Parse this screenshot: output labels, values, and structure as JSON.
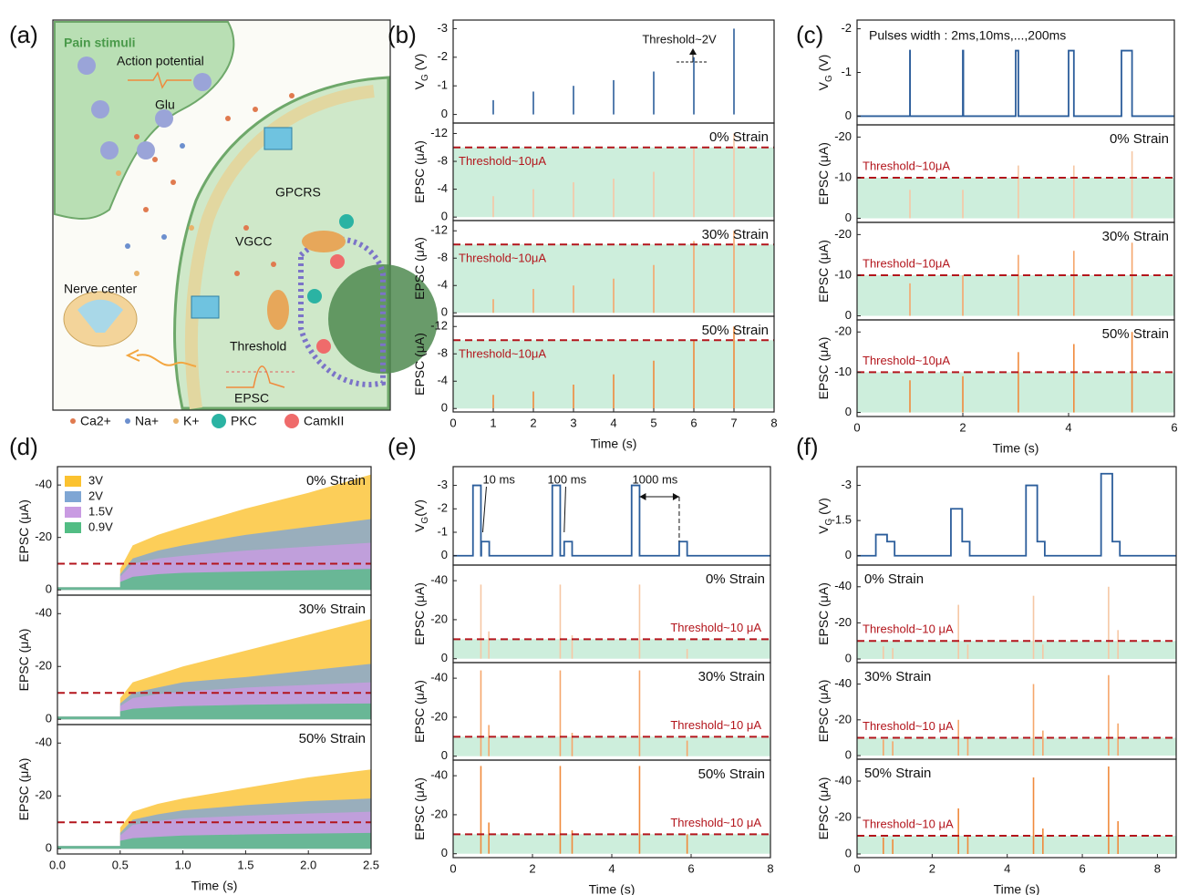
{
  "panels": [
    "(a)",
    "(b)",
    "(c)",
    "(d)",
    "(e)",
    "(f)"
  ],
  "diagram": {
    "title": "Pain stimuli",
    "action_potential": "Action potential",
    "glu": "Glu",
    "gpcrs": "GPCRS",
    "vgcc": "VGCC",
    "nerve_center": "Nerve center",
    "threshold": "Threshold",
    "epsc": "EPSC",
    "legend": [
      "Ca2+",
      "Na+",
      "K+",
      "PKC",
      "CamkII"
    ]
  },
  "chart_data": [
    {
      "type": "stem",
      "ylabel": [
        "V",
        "G",
        " (V)"
      ],
      "xlim": [
        0,
        8
      ],
      "ylim": [
        0.3,
        -3.3
      ],
      "yticks": [
        -3,
        -2,
        -1,
        0
      ],
      "color": "#2b5d9b",
      "x": [
        1,
        2,
        3,
        4,
        5,
        6,
        7
      ],
      "values": [
        -0.5,
        -0.8,
        -1,
        -1.2,
        -1.5,
        -2,
        -3
      ],
      "annotations": [
        "Threshold~2V"
      ]
    },
    {
      "type": "stem",
      "ylabel": [
        "EPSC (μA)"
      ],
      "label": "0% Strain",
      "xlim": [
        0,
        8
      ],
      "ylim": [
        0.5,
        -13.5
      ],
      "yticks": [
        -12,
        -8,
        -4,
        0
      ],
      "color": "#f6c7a4",
      "threshold": -10,
      "threshold_label": "Threshold~10μA",
      "threshold_fill": "#cdeedc",
      "x": [
        1,
        2,
        3,
        4,
        5,
        6,
        7
      ],
      "values": [
        -3,
        -4,
        -5,
        -5.5,
        -6.5,
        -10,
        -12
      ]
    },
    {
      "type": "stem",
      "ylabel": [
        "EPSC (μA)"
      ],
      "label": "30% Strain",
      "xlim": [
        0,
        8
      ],
      "ylim": [
        0.5,
        -13.5
      ],
      "yticks": [
        -12,
        -8,
        -4,
        0
      ],
      "color": "#f5a66b",
      "threshold": -10,
      "threshold_label": "Threshold~10μA",
      "threshold_fill": "#cdeedc",
      "x": [
        1,
        2,
        3,
        4,
        5,
        6,
        7
      ],
      "values": [
        -2,
        -3.5,
        -4,
        -5,
        -7,
        -10.5,
        -12
      ]
    },
    {
      "type": "stem",
      "ylabel": [
        "EPSC (μA)"
      ],
      "label": "50% Strain",
      "xlim": [
        0,
        8
      ],
      "ylim": [
        0.5,
        -13.5
      ],
      "yticks": [
        -12,
        -8,
        -4,
        0
      ],
      "color": "#f08a3c",
      "threshold": -10,
      "threshold_label": "Threshold~10μA",
      "threshold_fill": "#cdeedc",
      "x": [
        1,
        2,
        3,
        4,
        5,
        6,
        7
      ],
      "values": [
        -2,
        -2.5,
        -3.5,
        -5,
        -7,
        -10,
        -12
      ],
      "xticks": [
        0,
        1,
        2,
        3,
        4,
        5,
        6,
        7,
        8
      ],
      "xlabel": "Time (s)"
    },
    {
      "type": "line",
      "ylabel": [
        "V",
        "G",
        " (V)"
      ],
      "xlim": [
        0,
        6
      ],
      "ylim": [
        0.2,
        -2.2
      ],
      "yticks": [
        -2,
        -1,
        0
      ],
      "color": "#2b5d9b",
      "annotations": [
        "Pulses width : 2ms,10ms,...,200ms"
      ],
      "x": [
        0,
        1,
        1,
        1.002,
        1.002,
        2,
        2,
        2.01,
        2.01,
        3,
        3,
        3.05,
        3.05,
        4,
        4,
        4.1,
        4.1,
        5,
        5,
        5.2,
        5.2,
        6
      ],
      "values": [
        0,
        0,
        -1.5,
        -1.5,
        0,
        0,
        -1.5,
        -1.5,
        0,
        0,
        -1.5,
        -1.5,
        0,
        0,
        -1.5,
        -1.5,
        0,
        0,
        -1.5,
        -1.5,
        0,
        0
      ]
    },
    {
      "type": "stem",
      "ylabel": [
        "EPSC (μA)"
      ],
      "label": "0% Strain",
      "xlim": [
        0,
        6
      ],
      "ylim": [
        1,
        -23
      ],
      "yticks": [
        -20,
        -10,
        0
      ],
      "color": "#f6c7a4",
      "threshold": -10,
      "threshold_label": "Threshold~10μA",
      "threshold_fill": "#cdeedc",
      "x": [
        1,
        2,
        3.05,
        4.1,
        5.2
      ],
      "values": [
        -7,
        -7,
        -13,
        -13,
        -16.5
      ]
    },
    {
      "type": "stem",
      "ylabel": [
        "EPSC (μA)"
      ],
      "label": "30% Strain",
      "xlim": [
        0,
        6
      ],
      "ylim": [
        1,
        -23
      ],
      "yticks": [
        -20,
        -10,
        0
      ],
      "color": "#f5a66b",
      "threshold": -10,
      "threshold_label": "Threshold~10μA",
      "threshold_fill": "#cdeedc",
      "x": [
        1,
        2,
        3.05,
        4.1,
        5.2
      ],
      "values": [
        -8,
        -10,
        -15,
        -16,
        -18
      ]
    },
    {
      "type": "stem",
      "ylabel": [
        "EPSC (μA)"
      ],
      "label": "50% Strain",
      "xlim": [
        0,
        6
      ],
      "ylim": [
        1,
        -23
      ],
      "yticks": [
        -20,
        -10,
        0
      ],
      "color": "#f08a3c",
      "threshold": -10,
      "threshold_label": "Threshold~10μA",
      "threshold_fill": "#cdeedc",
      "x": [
        1,
        2,
        3.05,
        4.1,
        5.2
      ],
      "values": [
        -8,
        -9,
        -15,
        -17,
        -20
      ],
      "xticks": [
        0,
        2,
        4,
        6
      ],
      "xlabel": "Time (s)"
    },
    {
      "type": "area",
      "ylabel": [
        "EPSC (μA)"
      ],
      "label": "0% Strain",
      "xlim": [
        0,
        2.5
      ],
      "ylim": [
        2,
        -47
      ],
      "yticks": [
        -40,
        -20,
        0
      ],
      "threshold": -10,
      "legend": "upper left",
      "x": [
        0,
        0.5,
        0.5,
        0.6,
        0.8,
        1,
        1.5,
        2,
        2.5
      ],
      "series": [
        {
          "name": "3V",
          "color": "#fbc230",
          "values": [
            -1,
            -1,
            -8,
            -17,
            -21,
            -24,
            -31,
            -37,
            -44
          ]
        },
        {
          "name": "2V",
          "color": "#7fa6d4",
          "values": [
            -1,
            -1,
            -6,
            -12,
            -15,
            -17,
            -21,
            -24,
            -27
          ]
        },
        {
          "name": "1.5V",
          "color": "#c99be2",
          "values": [
            -1,
            -1,
            -5,
            -10,
            -12,
            -13,
            -15,
            -16.5,
            -18
          ]
        },
        {
          "name": "0.9V",
          "color": "#52bd84",
          "values": [
            -1,
            -1,
            -3,
            -5,
            -6,
            -6.5,
            -7,
            -7.5,
            -8
          ]
        }
      ]
    },
    {
      "type": "area",
      "ylabel": [
        "EPSC (μA)"
      ],
      "label": "30% Strain",
      "xlim": [
        0,
        2.5
      ],
      "ylim": [
        2,
        -47
      ],
      "yticks": [
        -40,
        -20,
        0
      ],
      "threshold": -10,
      "x": [
        0,
        0.5,
        0.5,
        0.6,
        0.8,
        1,
        1.5,
        2,
        2.5
      ],
      "series": [
        {
          "name": "3V",
          "color": "#fbc230",
          "values": [
            -1,
            -1,
            -8,
            -14,
            -17,
            -20,
            -26,
            -32,
            -38
          ]
        },
        {
          "name": "2V",
          "color": "#7fa6d4",
          "values": [
            -1,
            -1,
            -6,
            -10,
            -12,
            -14,
            -16,
            -18.5,
            -21
          ]
        },
        {
          "name": "1.5V",
          "color": "#c99be2",
          "values": [
            -1,
            -1,
            -5,
            -8,
            -9.5,
            -10.5,
            -12,
            -13,
            -14
          ]
        },
        {
          "name": "0.9V",
          "color": "#52bd84",
          "values": [
            -1,
            -1,
            -3,
            -4,
            -4.5,
            -5,
            -5.5,
            -5.8,
            -6
          ]
        }
      ]
    },
    {
      "type": "area",
      "ylabel": [
        "EPSC (μA)"
      ],
      "label": "50% Strain",
      "xlim": [
        0,
        2.5
      ],
      "ylim": [
        2,
        -47
      ],
      "yticks": [
        -40,
        -20,
        0
      ],
      "threshold": -10,
      "x": [
        0,
        0.5,
        0.5,
        0.6,
        0.8,
        1,
        1.5,
        2,
        2.5
      ],
      "series": [
        {
          "name": "3V",
          "color": "#fbc230",
          "values": [
            -1,
            -1,
            -8,
            -14,
            -17,
            -19,
            -23,
            -27,
            -30
          ]
        },
        {
          "name": "2V",
          "color": "#7fa6d4",
          "values": [
            -1,
            -1,
            -6,
            -11,
            -13,
            -14.5,
            -16.5,
            -18,
            -19
          ]
        },
        {
          "name": "1.5V",
          "color": "#c99be2",
          "values": [
            -1,
            -1,
            -5,
            -9,
            -10.5,
            -11.5,
            -12.5,
            -13.3,
            -14
          ]
        },
        {
          "name": "0.9V",
          "color": "#52bd84",
          "values": [
            -1,
            -1,
            -3,
            -4,
            -4.5,
            -5,
            -5.4,
            -5.7,
            -6
          ]
        }
      ],
      "xticks": [
        {
          "value": 0,
          "label": "0.0"
        },
        0.5,
        {
          "value": 1,
          "label": "1.0"
        },
        1.5,
        {
          "value": 2,
          "label": "2.0"
        },
        2.5
      ],
      "xlabel": "Time (s)"
    },
    {
      "type": "line",
      "ylabel": [
        "V",
        "G",
        "(V)"
      ],
      "xlim": [
        0,
        8
      ],
      "ylim": [
        0.4,
        -3.8
      ],
      "yticks": [
        -3,
        -2,
        -1,
        0
      ],
      "color": "#2b5d9b",
      "annotations": [
        "10 ms",
        "100 ms",
        "1000 ms"
      ],
      "x": [
        0,
        0.5,
        0.5,
        0.7,
        0.7,
        0.71,
        0.71,
        0.91,
        0.91,
        2.5,
        2.5,
        2.7,
        2.7,
        2.8,
        2.8,
        3.0,
        3.0,
        4.5,
        4.5,
        4.7,
        4.7,
        5.7,
        5.7,
        5.9,
        5.9,
        8
      ],
      "values": [
        0,
        0,
        -3,
        -3,
        0,
        0,
        -0.6,
        -0.6,
        0,
        0,
        -3,
        -3,
        0,
        0,
        -0.6,
        -0.6,
        0,
        0,
        -3,
        -3,
        0,
        0,
        -0.6,
        -0.6,
        0,
        0
      ]
    },
    {
      "type": "stem",
      "ylabel": [
        "EPSC (μA)"
      ],
      "label": "0% Strain",
      "xlim": [
        0,
        8
      ],
      "ylim": [
        2,
        -48
      ],
      "yticks": [
        -40,
        -20,
        0
      ],
      "color": "#f6c7a4",
      "threshold": -10,
      "threshold_label": "Threshold~10 μA",
      "threshold_fill": "#cdeedc",
      "x": [
        0.7,
        0.9,
        2.7,
        3.0,
        4.7,
        5.9
      ],
      "values": [
        -38,
        -14,
        -38,
        -12,
        -38,
        -5
      ]
    },
    {
      "type": "stem",
      "ylabel": [
        "EPSC (μA)"
      ],
      "label": "30% Strain",
      "xlim": [
        0,
        8
      ],
      "ylim": [
        2,
        -48
      ],
      "yticks": [
        -40,
        -20,
        0
      ],
      "color": "#f5a66b",
      "threshold": -10,
      "threshold_label": "Threshold~10 μA",
      "threshold_fill": "#cdeedc",
      "x": [
        0.7,
        0.9,
        2.7,
        3.0,
        4.7,
        5.9
      ],
      "values": [
        -44,
        -16,
        -44,
        -12,
        -44,
        -8
      ]
    },
    {
      "type": "stem",
      "ylabel": [
        "EPSC (μA)"
      ],
      "label": "50% Strain",
      "xlim": [
        0,
        8
      ],
      "ylim": [
        2,
        -48
      ],
      "yticks": [
        -40,
        -20,
        0
      ],
      "color": "#f08a3c",
      "threshold": -10,
      "threshold_label": "Threshold~10 μA",
      "threshold_fill": "#cdeedc",
      "x": [
        0.7,
        0.9,
        2.7,
        3.0,
        4.7,
        5.9
      ],
      "values": [
        -45,
        -16,
        -45,
        -12,
        -45,
        -10
      ],
      "xticks": [
        0,
        2,
        4,
        6,
        8
      ],
      "xlabel": "Time (s)"
    },
    {
      "type": "line",
      "ylabel": [
        "V",
        "G",
        " (V)"
      ],
      "xlim": [
        0,
        8.5
      ],
      "ylim": [
        0.4,
        -3.8
      ],
      "yticks": [
        -3,
        -1.5,
        0
      ],
      "color": "#2b5d9b",
      "x": [
        0,
        0.5,
        0.5,
        0.8,
        0.8,
        1.0,
        1.0,
        2.5,
        2.5,
        2.8,
        2.8,
        3.0,
        3.0,
        4.5,
        4.5,
        4.8,
        4.8,
        5.0,
        5.0,
        6.5,
        6.5,
        6.8,
        6.8,
        7.0,
        7.0,
        8.5
      ],
      "values": [
        0,
        0,
        -0.9,
        -0.9,
        -0.6,
        -0.6,
        0,
        0,
        -2,
        -2,
        -0.6,
        -0.6,
        0,
        0,
        -3,
        -3,
        -0.6,
        -0.6,
        0,
        0,
        -3.5,
        -3.5,
        -0.6,
        -0.6,
        0,
        0
      ]
    },
    {
      "type": "stem",
      "ylabel": [
        "EPSC (μA)"
      ],
      "label": "0% Strain",
      "xlim": [
        0,
        8.5
      ],
      "ylim": [
        2,
        -52
      ],
      "yticks": [
        -40,
        -20,
        0
      ],
      "color": "#f6c7a4",
      "threshold": -10,
      "threshold_label": "Threshold~10 μA",
      "threshold_fill": "#cdeedc",
      "x": [
        0.7,
        0.95,
        2.7,
        2.95,
        4.7,
        4.95,
        6.7,
        6.95
      ],
      "values": [
        -7,
        -6,
        -30,
        -8,
        -35,
        -8,
        -40,
        -16
      ]
    },
    {
      "type": "stem",
      "ylabel": [
        "EPSC (μA)"
      ],
      "label": "30% Strain",
      "xlim": [
        0,
        8.5
      ],
      "ylim": [
        2,
        -52
      ],
      "yticks": [
        -40,
        -20,
        0
      ],
      "color": "#f5a66b",
      "threshold": -10,
      "threshold_label": "Threshold~10 μA",
      "threshold_fill": "#cdeedc",
      "x": [
        0.7,
        0.95,
        2.7,
        2.95,
        4.7,
        4.95,
        6.7,
        6.95
      ],
      "values": [
        -9,
        -8,
        -20,
        -10,
        -40,
        -14,
        -45,
        -18
      ]
    },
    {
      "type": "stem",
      "ylabel": [
        "EPSC (μA)"
      ],
      "label": "50% Strain",
      "xlim": [
        0,
        8.5
      ],
      "ylim": [
        2,
        -52
      ],
      "yticks": [
        -40,
        -20,
        0
      ],
      "color": "#f08a3c",
      "threshold": -10,
      "threshold_label": "Threshold~10 μA",
      "threshold_fill": "#cdeedc",
      "x": [
        0.7,
        0.95,
        2.7,
        2.95,
        4.7,
        4.95,
        6.7,
        6.95
      ],
      "values": [
        -9,
        -8,
        -25,
        -10,
        -42,
        -14,
        -48,
        -18
      ],
      "xticks": [
        0,
        2,
        4,
        6,
        8
      ],
      "xlabel": "Time (s)"
    }
  ]
}
